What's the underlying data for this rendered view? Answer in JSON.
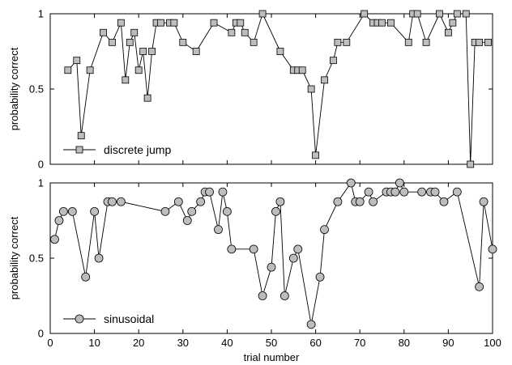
{
  "chart_data": [
    {
      "type": "line",
      "marker": "square",
      "marker_color": "#bdbdbd",
      "line_color": "#000000",
      "xlim": [
        0,
        100
      ],
      "ylim": [
        0,
        1
      ],
      "xticks": [
        "0",
        "10",
        "20",
        "30",
        "40",
        "50",
        "60",
        "70",
        "80",
        "90",
        "100"
      ],
      "yticks": [
        "0",
        "0.5",
        "1"
      ],
      "xlabel": "",
      "ylabel": "probability correct",
      "legend_position": "bottom-left",
      "series": [
        {
          "name": "discrete jump",
          "x": [
            4,
            6,
            7,
            9,
            12,
            14,
            16,
            17,
            18,
            19,
            20,
            21,
            22,
            23,
            24,
            25,
            27,
            28,
            30,
            33,
            37,
            41,
            42,
            43,
            44,
            46,
            48,
            52,
            55,
            56,
            57,
            59,
            60,
            62,
            64,
            65,
            67,
            71,
            73,
            74,
            75,
            77,
            81,
            82,
            83,
            85,
            88,
            90,
            91,
            92,
            94,
            95,
            96,
            97,
            99
          ],
          "y": [
            0.625,
            0.69,
            0.19,
            0.625,
            0.875,
            0.81,
            0.94,
            0.56,
            0.81,
            0.875,
            0.625,
            0.75,
            0.44,
            0.75,
            0.94,
            0.94,
            0.94,
            0.94,
            0.81,
            0.75,
            0.94,
            0.875,
            0.94,
            0.94,
            0.875,
            0.81,
            1.0,
            0.75,
            0.625,
            0.625,
            0.625,
            0.5,
            0.06,
            0.56,
            0.69,
            0.81,
            0.81,
            1.0,
            0.94,
            0.94,
            0.94,
            0.94,
            0.81,
            1.0,
            1.0,
            0.81,
            1.0,
            0.875,
            0.94,
            1.0,
            1.0,
            0.0,
            0.81,
            0.81,
            0.81
          ]
        }
      ]
    },
    {
      "type": "line",
      "marker": "circle",
      "marker_color": "#bdbdbd",
      "line_color": "#000000",
      "xlim": [
        0,
        100
      ],
      "ylim": [
        0,
        1
      ],
      "xticks": [
        "0",
        "10",
        "20",
        "30",
        "40",
        "50",
        "60",
        "70",
        "80",
        "90",
        "100"
      ],
      "yticks": [
        "0",
        "0.5",
        "1"
      ],
      "xlabel": "trial number",
      "ylabel": "probability correct",
      "legend_position": "bottom-left",
      "series": [
        {
          "name": "sinusoidal",
          "x": [
            1,
            2,
            3,
            5,
            8,
            10,
            11,
            13,
            14,
            16,
            26,
            29,
            31,
            32,
            34,
            35,
            36,
            38,
            39,
            40,
            41,
            46,
            48,
            50,
            51,
            52,
            53,
            55,
            56,
            59,
            61,
            62,
            65,
            68,
            69,
            70,
            72,
            73,
            76,
            77,
            78,
            79,
            80,
            84,
            86,
            87,
            89,
            92,
            97,
            98,
            100
          ],
          "y": [
            0.625,
            0.75,
            0.81,
            0.81,
            0.375,
            0.81,
            0.5,
            0.875,
            0.875,
            0.875,
            0.81,
            0.875,
            0.75,
            0.81,
            0.875,
            0.94,
            0.94,
            0.69,
            0.94,
            0.81,
            0.56,
            0.56,
            0.25,
            0.44,
            0.81,
            0.875,
            0.25,
            0.5,
            0.56,
            0.06,
            0.375,
            0.69,
            0.875,
            1.0,
            0.875,
            0.875,
            0.94,
            0.875,
            0.94,
            0.94,
            0.94,
            1.0,
            0.94,
            0.94,
            0.94,
            0.94,
            0.875,
            0.94,
            0.31,
            0.875,
            0.56
          ]
        }
      ]
    }
  ]
}
